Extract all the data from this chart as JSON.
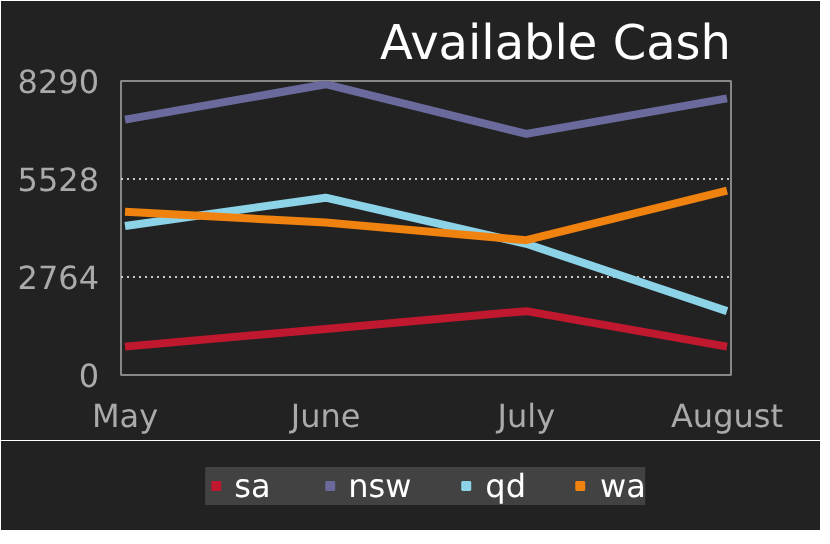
{
  "chart_data": {
    "type": "line",
    "title": "Available Cash",
    "categories": [
      "May",
      "June",
      "July",
      "August"
    ],
    "series": [
      {
        "name": "sa",
        "color": "#c0182e",
        "values": [
          800,
          1300,
          1800,
          800
        ]
      },
      {
        "name": "nsw",
        "color": "#6a6a9c",
        "values": [
          7200,
          8200,
          6800,
          7800
        ]
      },
      {
        "name": "qd",
        "color": "#8dd3e8",
        "values": [
          4200,
          5000,
          3700,
          1800
        ]
      },
      {
        "name": "wa",
        "color": "#f0820f",
        "values": [
          4600,
          4300,
          3800,
          5200
        ]
      }
    ],
    "ylim": [
      0,
      8290
    ],
    "yticks": [
      0,
      2764,
      5528,
      8290
    ],
    "grid": "y",
    "legend": "bottom",
    "line_style": "solid",
    "marker": "none"
  }
}
